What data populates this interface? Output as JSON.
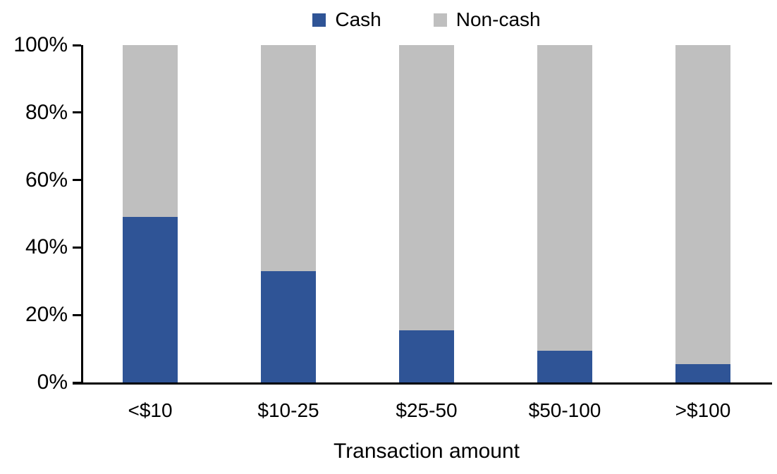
{
  "chart_data": {
    "type": "bar",
    "stacked": true,
    "orientation": "vertical",
    "title": "",
    "xlabel": "Transaction amount",
    "ylabel": "",
    "categories": [
      "<$10",
      "$10-25",
      "$25-50",
      "$50-100",
      ">$100"
    ],
    "series": [
      {
        "name": "Cash",
        "color": "#2F5496",
        "values": [
          49,
          33,
          15.5,
          9.5,
          5.5
        ]
      },
      {
        "name": "Non-cash",
        "color": "#BFBFBF",
        "values": [
          51,
          67,
          84.5,
          90.5,
          94.5
        ]
      }
    ],
    "ylim": [
      0,
      100
    ],
    "yticks": [
      "0%",
      "20%",
      "40%",
      "60%",
      "80%",
      "100%"
    ],
    "grid": false,
    "legend_position": "top-center",
    "axis_color": "#000000",
    "text_color": "#000000"
  }
}
